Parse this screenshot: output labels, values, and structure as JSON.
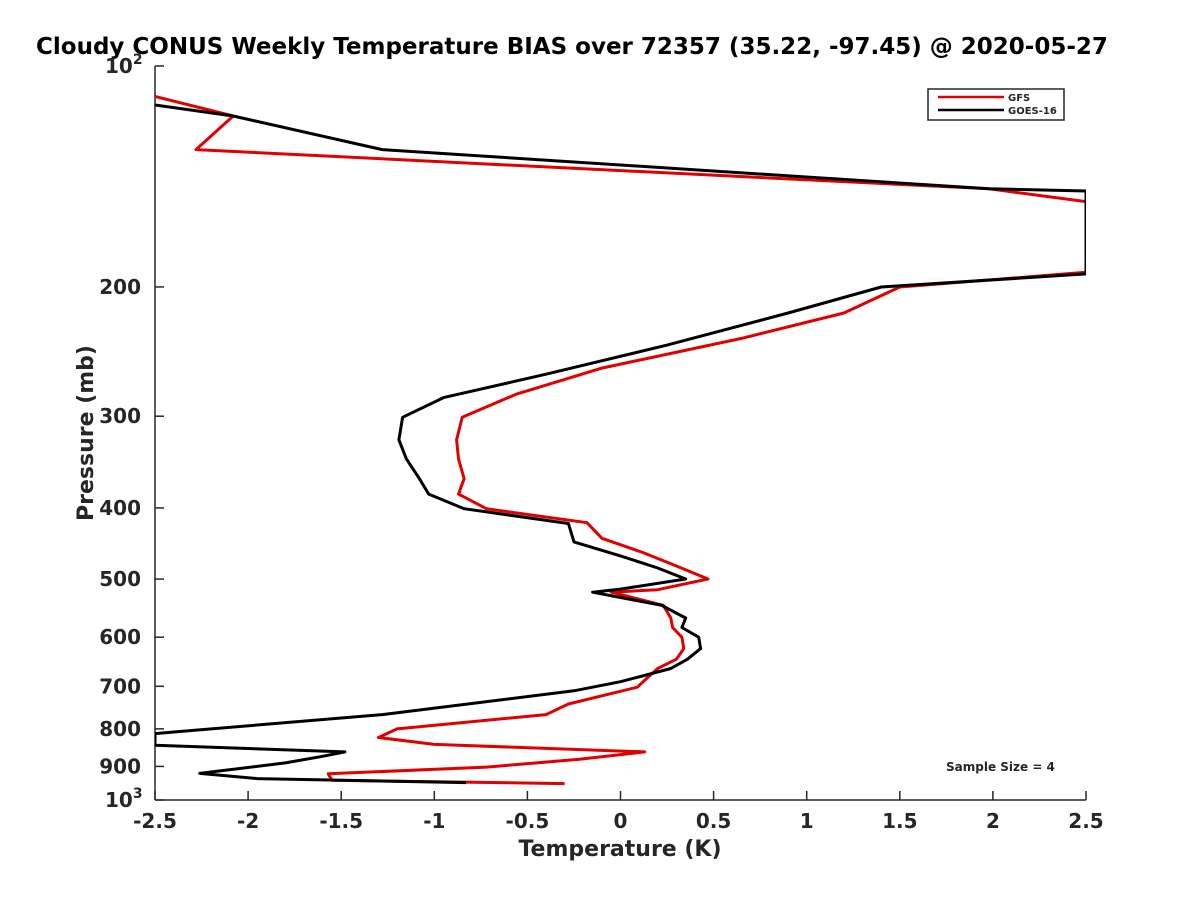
{
  "chart_data": {
    "type": "line",
    "title": "Cloudy CONUS Weekly Temperature BIAS over 72357 (35.22, -97.45) @ 2020-05-27",
    "xlabel": "Temperature (K)",
    "ylabel": "Pressure (mb)",
    "x_scale": "linear",
    "y_scale": "log",
    "y_reversed": true,
    "xlim": [
      -2.5,
      2.5
    ],
    "ylim": [
      100,
      1000
    ],
    "x_ticks": [
      -2.5,
      -2,
      -1.5,
      -1,
      -0.5,
      0,
      0.5,
      1,
      1.5,
      2,
      2.5
    ],
    "x_tick_labels": [
      "-2.5",
      "-2",
      "-1.5",
      "-1",
      "-0.5",
      "0",
      "0.5",
      "1",
      "1.5",
      "2",
      "2.5"
    ],
    "y_ticks": [
      100,
      200,
      300,
      400,
      500,
      600,
      700,
      800,
      900,
      1000
    ],
    "y_tick_labels": [
      "10^2",
      "200",
      "300",
      "400",
      "500",
      "600",
      "700",
      "800",
      "900",
      "10^3"
    ],
    "grid": false,
    "legend_position": "top-right",
    "annotation": "Sample Size = 4",
    "series": [
      {
        "name": "GFS",
        "color": "#e00000",
        "points": [
          [
            -2.5,
            110
          ],
          [
            -2.08,
            117
          ],
          [
            -2.28,
            130
          ],
          [
            1.98,
            147
          ],
          [
            2.5,
            153
          ],
          [
            2.5,
            191
          ],
          [
            1.5,
            200
          ],
          [
            1.2,
            217
          ],
          [
            0.65,
            235
          ],
          [
            -0.1,
            258
          ],
          [
            -0.56,
            280
          ],
          [
            -0.85,
            301
          ],
          [
            -0.88,
            323
          ],
          [
            -0.87,
            343
          ],
          [
            -0.84,
            365
          ],
          [
            -0.87,
            383
          ],
          [
            -0.72,
            401
          ],
          [
            -0.18,
            419
          ],
          [
            -0.1,
            440
          ],
          [
            0.12,
            460
          ],
          [
            0.3,
            480
          ],
          [
            0.47,
            500
          ],
          [
            0.2,
            517
          ],
          [
            -0.05,
            521
          ],
          [
            0.23,
            543
          ],
          [
            0.27,
            565
          ],
          [
            0.28,
            582
          ],
          [
            0.33,
            600
          ],
          [
            0.34,
            622
          ],
          [
            0.3,
            643
          ],
          [
            0.2,
            662
          ],
          [
            0.14,
            683
          ],
          [
            0.09,
            702
          ],
          [
            -0.28,
            740
          ],
          [
            -0.4,
            765
          ],
          [
            -1.2,
            800
          ],
          [
            -1.3,
            822
          ],
          [
            -1.0,
            840
          ],
          [
            0.13,
            860
          ],
          [
            -0.22,
            880
          ],
          [
            -0.72,
            902
          ],
          [
            -1.57,
            921
          ],
          [
            -1.55,
            940
          ],
          [
            -0.3,
            950
          ]
        ]
      },
      {
        "name": "GOES-16",
        "color": "#000000",
        "points": [
          [
            -2.5,
            113
          ],
          [
            -2.08,
            117
          ],
          [
            -1.28,
            130
          ],
          [
            1.98,
            147
          ],
          [
            2.5,
            148
          ],
          [
            2.5,
            192
          ],
          [
            1.4,
            200
          ],
          [
            0.9,
            217
          ],
          [
            0.25,
            240
          ],
          [
            -0.4,
            263
          ],
          [
            -0.95,
            283
          ],
          [
            -1.17,
            301
          ],
          [
            -1.19,
            323
          ],
          [
            -1.15,
            343
          ],
          [
            -1.08,
            365
          ],
          [
            -1.03,
            383
          ],
          [
            -0.84,
            401
          ],
          [
            -0.28,
            420
          ],
          [
            -0.25,
            445
          ],
          [
            0.0,
            465
          ],
          [
            0.2,
            483
          ],
          [
            0.35,
            500
          ],
          [
            0.0,
            516
          ],
          [
            -0.15,
            521
          ],
          [
            0.22,
            543
          ],
          [
            0.35,
            565
          ],
          [
            0.33,
            582
          ],
          [
            0.42,
            600
          ],
          [
            0.43,
            622
          ],
          [
            0.36,
            643
          ],
          [
            0.27,
            662
          ],
          [
            0.0,
            690
          ],
          [
            -0.25,
            710
          ],
          [
            -1.28,
            765
          ],
          [
            -2.4,
            808
          ],
          [
            -2.5,
            812
          ],
          [
            -2.5,
            842
          ],
          [
            -1.48,
            860
          ],
          [
            -1.6,
            872
          ],
          [
            -1.8,
            890
          ],
          [
            -2.26,
            920
          ],
          [
            -1.95,
            935
          ],
          [
            -0.83,
            947
          ]
        ]
      }
    ]
  }
}
